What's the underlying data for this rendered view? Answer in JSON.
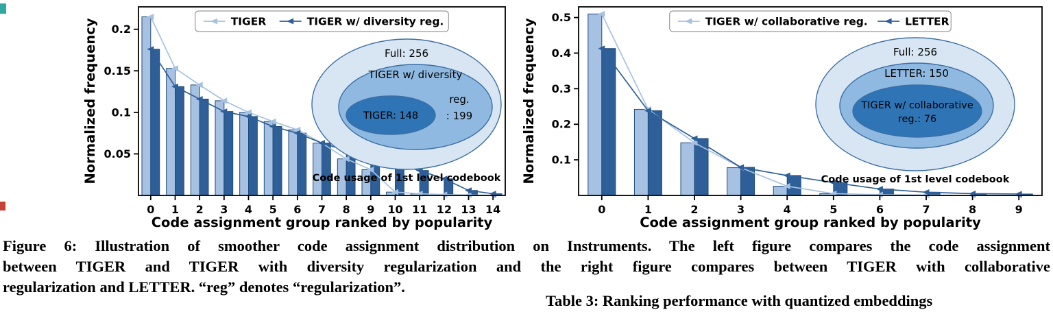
{
  "caption": {
    "lines": [
      "Figure 6: Illustration of smoother code assignment distribution on Instruments. The left figure compares the code assignment",
      "between TIGER and TIGER with diversity regularization and the right figure compares between TIGER with collaborative",
      "regularization and LETTER. “reg” denotes “regularization”."
    ]
  },
  "table_caption": {
    "text": "Table 3: Ranking performance with quantized embeddings"
  },
  "colors": {
    "light_series": "#a6c1e1",
    "dark_series": "#2e5f99",
    "bar_edge": "#1f4b7a",
    "axis": "#000000",
    "inset_outer": "#d8e6f4",
    "inset_middle": "#8fb9e0",
    "inset_inner": "#2f74b5",
    "inset_stroke": "#3c6ea5",
    "legend_border": "#999999"
  },
  "artifacts": {
    "top_left_color": "#2ea8a0",
    "mid_left_color": "#c44536"
  },
  "chart_data": [
    {
      "type": "bar",
      "title": "",
      "xlabel": "Code assignment group ranked by popularity",
      "ylabel": "Normalized frequency",
      "categories": [
        "0",
        "1",
        "2",
        "3",
        "4",
        "5",
        "6",
        "7",
        "8",
        "9",
        "10",
        "11",
        "12",
        "13",
        "14"
      ],
      "ylim": [
        0,
        0.227
      ],
      "yticks": [
        0.05,
        0.1,
        0.15,
        0.2
      ],
      "ytick_labels": [
        "0.05",
        "0.1",
        "0.15",
        "0.2"
      ],
      "grid": false,
      "legend_position": "top-center",
      "series": [
        {
          "name": "TIGER",
          "color": "#a6c1e1",
          "values": [
            0.215,
            0.153,
            0.133,
            0.114,
            0.1,
            0.089,
            0.079,
            0.063,
            0.044,
            0.031,
            0.004,
            0.002,
            0.001,
            0.0005,
            0.0
          ]
        },
        {
          "name": "TIGER w/ diversity reg.",
          "color": "#2e5f99",
          "values": [
            0.176,
            0.131,
            0.116,
            0.101,
            0.095,
            0.083,
            0.075,
            0.063,
            0.054,
            0.046,
            0.038,
            0.03,
            0.02,
            0.006,
            0.002
          ]
        }
      ],
      "inset": {
        "outer_label": "Full: 256",
        "middle_label": "TIGER w/ diversity",
        "middle_extra_lines": [
          "reg.",
          ": 199"
        ],
        "inner_lines": [
          "TIGER: 148"
        ],
        "caption": "Code usage of 1st level codebook"
      }
    },
    {
      "type": "bar",
      "title": "",
      "xlabel": "Code assignment group ranked by popularity",
      "ylabel": "Normalized frequency",
      "categories": [
        "0",
        "1",
        "2",
        "3",
        "4",
        "5",
        "6",
        "7",
        "8",
        "9"
      ],
      "ylim": [
        0,
        0.53
      ],
      "yticks": [
        0.1,
        0.2,
        0.3,
        0.4,
        0.5
      ],
      "ytick_labels": [
        "0.1",
        "0.2",
        "0.3",
        "0.4",
        "0.5"
      ],
      "grid": false,
      "legend_position": "top-center",
      "series": [
        {
          "name": "TIGER w/ collaborative reg.",
          "color": "#a6c1e1",
          "values": [
            0.51,
            0.242,
            0.148,
            0.078,
            0.026,
            0.005,
            0.002,
            0.001,
            0.0,
            0.0
          ]
        },
        {
          "name": "LETTER",
          "color": "#2e5f99",
          "values": [
            0.413,
            0.238,
            0.16,
            0.079,
            0.056,
            0.036,
            0.018,
            0.009,
            0.005,
            0.004
          ]
        }
      ],
      "inset": {
        "outer_label": "Full:  256",
        "middle_label": "LETTER: 150",
        "middle_extra_lines": [],
        "inner_lines": [
          "TIGER w/ collaborative",
          "reg.: 76"
        ],
        "caption": "Code usage of 1st level codebook"
      }
    }
  ]
}
